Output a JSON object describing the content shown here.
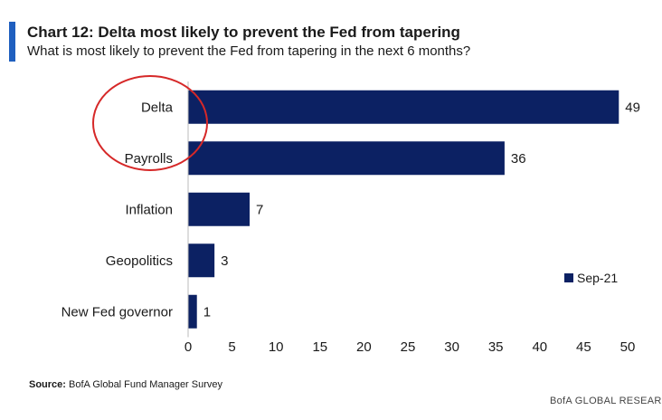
{
  "header": {
    "title": "Chart 12: Delta most likely to prevent the Fed from tapering",
    "subtitle": "What is most likely to prevent the Fed from tapering in the next 6 months?"
  },
  "chart_data": {
    "type": "bar",
    "orientation": "horizontal",
    "categories": [
      "Delta",
      "Payrolls",
      "Inflation",
      "Geopolitics",
      "New Fed governor"
    ],
    "series": [
      {
        "name": "Sep-21",
        "values": [
          49,
          36,
          7,
          3,
          1
        ],
        "color": "#0c2163"
      }
    ],
    "xlim": [
      0,
      50
    ],
    "xticks": [
      0,
      5,
      10,
      15,
      20,
      25,
      30,
      35,
      40,
      45,
      50
    ],
    "grid": false,
    "legend_position": "right",
    "annotation": {
      "shape": "ellipse",
      "color": "#d62828",
      "circles": [
        "Delta",
        "Payrolls"
      ]
    }
  },
  "footer": {
    "source_label": "Source:",
    "source_text": "BofA Global Fund Manager Survey",
    "brand": "BofA GLOBAL RESEARCH"
  }
}
